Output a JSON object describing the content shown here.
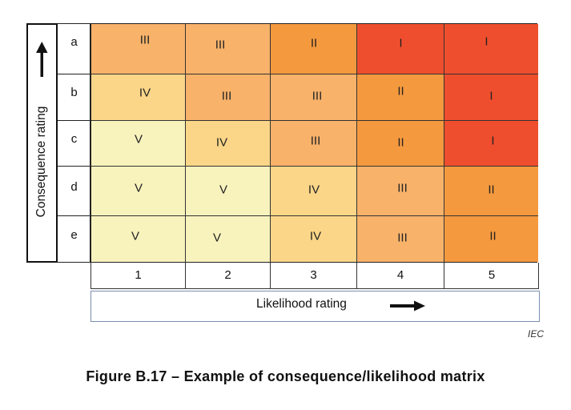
{
  "y_axis": {
    "label": "Consequence rating",
    "arrow_icon": "arrow-up-icon"
  },
  "x_axis": {
    "label": "Likelihood rating",
    "arrow_icon": "arrow-right-icon"
  },
  "rows": [
    "a",
    "b",
    "c",
    "d",
    "e"
  ],
  "columns": [
    "1",
    "2",
    "3",
    "4",
    "5"
  ],
  "matrix": [
    [
      "III",
      "III",
      "II",
      "I",
      "I"
    ],
    [
      "IV",
      "III",
      "III",
      "II",
      "I"
    ],
    [
      "V",
      "IV",
      "III",
      "II",
      "I"
    ],
    [
      "V",
      "V",
      "IV",
      "III",
      "II"
    ],
    [
      "V",
      "V",
      "IV",
      "III",
      "II"
    ]
  ],
  "level_colors": {
    "I": "#ef4e2e",
    "II": "#f5993e",
    "III": "#f8b26a",
    "IV": "#fbd688",
    "V": "#f8f3bd"
  },
  "source_note": "IEC",
  "caption": "Figure B.17 – Example of consequence/likelihood matrix"
}
